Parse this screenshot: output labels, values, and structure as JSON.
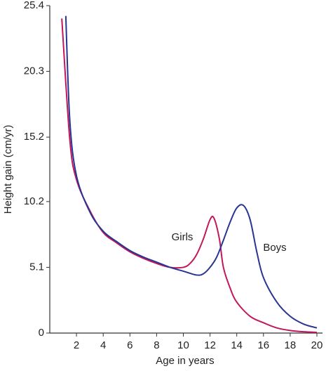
{
  "chart_data": {
    "type": "line",
    "xlabel": "Age in years",
    "ylabel": "Height gain (cm/yr)",
    "xlim": [
      0,
      20
    ],
    "xticks": [
      2,
      4,
      6,
      8,
      10,
      12,
      14,
      16,
      18,
      20
    ],
    "ylim": [
      0,
      25.4
    ],
    "yticks": [
      0,
      5.1,
      10.2,
      15.2,
      20.3,
      25.4
    ],
    "grid": false,
    "series": [
      {
        "name": "Girls",
        "color": "#c2185b",
        "x": [
          0.9,
          1.5,
          2,
          3,
          4,
          5,
          6,
          7,
          8,
          9,
          10,
          10.5,
          11,
          11.5,
          12,
          12.3,
          12.7,
          13,
          13.5,
          14,
          15,
          16,
          17,
          18,
          19,
          20
        ],
        "values": [
          24.4,
          15.0,
          11.9,
          9.5,
          7.8,
          7.0,
          6.3,
          5.8,
          5.4,
          5.1,
          5.1,
          5.4,
          6.1,
          7.3,
          8.8,
          8.9,
          7.3,
          5.1,
          3.5,
          2.4,
          1.3,
          0.8,
          0.4,
          0.2,
          0.1,
          0.05
        ]
      },
      {
        "name": "Boys",
        "color": "#283593",
        "x": [
          1.2,
          1.5,
          2,
          3,
          4,
          5,
          6,
          7,
          8,
          9,
          10,
          11,
          11.5,
          12,
          12.5,
          13,
          13.5,
          14,
          14.5,
          15,
          15.5,
          16,
          17,
          18,
          19,
          20
        ],
        "values": [
          24.6,
          16.5,
          12.2,
          9.4,
          7.9,
          7.1,
          6.4,
          5.9,
          5.5,
          5.1,
          4.8,
          4.5,
          4.6,
          5.1,
          5.9,
          7.2,
          8.6,
          9.7,
          9.9,
          8.8,
          6.3,
          4.3,
          2.4,
          1.3,
          0.7,
          0.4
        ]
      }
    ]
  }
}
